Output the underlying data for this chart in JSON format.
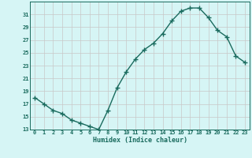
{
  "x": [
    0,
    1,
    2,
    3,
    4,
    5,
    6,
    7,
    8,
    9,
    10,
    11,
    12,
    13,
    14,
    15,
    16,
    17,
    18,
    19,
    20,
    21,
    22,
    23
  ],
  "y": [
    18,
    17,
    16,
    15.5,
    14.5,
    14,
    13.5,
    13,
    16,
    19.5,
    22,
    24,
    25.5,
    26.5,
    28,
    30,
    31.5,
    32,
    32,
    30.5,
    28.5,
    27.5,
    24.5,
    23.5
  ],
  "xlabel": "Humidex (Indice chaleur)",
  "xlim": [
    -0.5,
    23.5
  ],
  "ylim": [
    13,
    33
  ],
  "yticks": [
    13,
    15,
    17,
    19,
    21,
    23,
    25,
    27,
    29,
    31
  ],
  "xtick_labels": [
    "0",
    "1",
    "2",
    "3",
    "4",
    "5",
    "6",
    "7",
    "8",
    "9",
    "10",
    "11",
    "12",
    "13",
    "14",
    "15",
    "16",
    "17",
    "18",
    "19",
    "20",
    "21",
    "22",
    "23"
  ],
  "line_color": "#1a6b5e",
  "bg_color": "#d6f5f5",
  "grid_color": "#c8c8c8",
  "marker": "+",
  "markersize": 4,
  "linewidth": 1.0
}
